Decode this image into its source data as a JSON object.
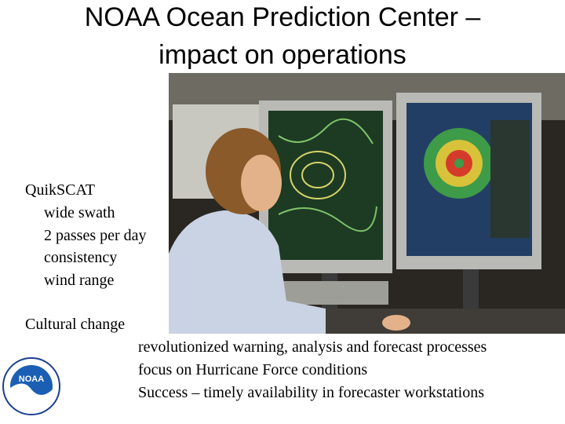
{
  "title": [
    "NOAA Ocean Prediction Center –",
    "impact on operations"
  ],
  "sections": [
    {
      "heading": "QuikSCAT",
      "items": [
        "wide swath",
        "2 passes per day",
        "consistency",
        "wind range"
      ]
    },
    {
      "heading": "Cultural change",
      "items": [
        "revolutionized warning, analysis and forecast processes",
        "focus on Hurricane Force conditions",
        "Success – timely availability in forecaster workstations"
      ]
    }
  ],
  "logo": {
    "label": "NOAA"
  }
}
